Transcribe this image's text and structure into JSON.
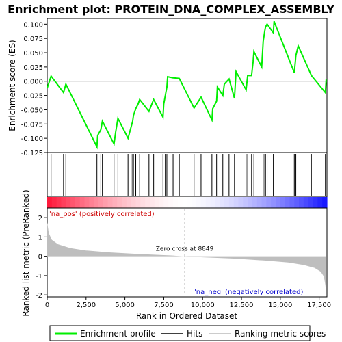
{
  "chart_data": {
    "type": "line",
    "title": "Enrichment plot: PROTEIN_DNA_COMPLEX_ASSEMBLY",
    "panels": {
      "enrichment": {
        "ylabel": "Enrichment score (ES)",
        "ylim": [
          -0.125,
          0.11
        ],
        "yticks": [
          0.1,
          0.075,
          0.05,
          0.025,
          0.0,
          -0.025,
          -0.05,
          -0.075,
          -0.1,
          -0.125
        ],
        "ytick_labels": [
          "0.100",
          "0.075",
          "0.050",
          "0.025",
          "0.000",
          "-0.025",
          "-0.050",
          "-0.075",
          "-0.100",
          "-0.125"
        ],
        "series": [
          {
            "name": "Enrichment profile",
            "color": "#00ee00",
            "x": [
              0,
              250,
              1050,
              1200,
              3200,
              3250,
              3450,
              3550,
              4300,
              4400,
              4550,
              5200,
              5400,
              5500,
              5550,
              5700,
              5850,
              5950,
              6550,
              6850,
              7450,
              7500,
              7600,
              7700,
              7750,
              8100,
              8500,
              9450,
              9900,
              10600,
              10650,
              10900,
              10950,
              11300,
              11400,
              11700,
              12050,
              12150,
              12800,
              12900,
              13150,
              13250,
              13300,
              13800,
              13900,
              14000,
              14050,
              14150,
              14550,
              14600,
              15900,
              16000,
              16150,
              17000,
              17900,
              17950
            ],
            "y": [
              -0.012,
              0.009,
              -0.02,
              -0.005,
              -0.115,
              -0.095,
              -0.085,
              -0.07,
              -0.11,
              -0.09,
              -0.065,
              -0.1,
              -0.08,
              -0.07,
              -0.06,
              -0.048,
              -0.04,
              -0.032,
              -0.053,
              -0.032,
              -0.063,
              -0.04,
              -0.025,
              -0.01,
              0.008,
              0.006,
              0.005,
              -0.047,
              -0.028,
              -0.068,
              -0.048,
              -0.035,
              -0.01,
              -0.025,
              -0.005,
              0.004,
              -0.03,
              0.017,
              -0.015,
              0.01,
              0.01,
              0.035,
              0.052,
              0.025,
              0.07,
              0.088,
              0.095,
              0.1,
              0.085,
              0.105,
              0.015,
              0.045,
              0.062,
              0.01,
              -0.02,
              0.003
            ]
          }
        ]
      },
      "hits": {
        "series_name": "Hits",
        "x": [
          250,
          1050,
          1200,
          3200,
          3450,
          3550,
          4300,
          4550,
          5200,
          5400,
          5500,
          5550,
          5700,
          5950,
          6550,
          6850,
          7450,
          7600,
          7700,
          8100,
          8500,
          9450,
          9900,
          10600,
          10900,
          11300,
          11700,
          12050,
          12800,
          12900,
          13150,
          13300,
          13900,
          14000,
          14050,
          14150,
          14550,
          15900,
          16000,
          17000,
          17900
        ]
      },
      "ranked_metric": {
        "series_name": "Ranking metric scores",
        "ylabel": "Ranked list metric (PreRanked)",
        "xlabel": "Rank in Ordered Dataset",
        "xlim": [
          0,
          18000
        ],
        "xticks": [
          0,
          2500,
          5000,
          7500,
          10000,
          12500,
          15000,
          17500
        ],
        "xtick_labels": [
          "0",
          "2,500",
          "5,000",
          "7,500",
          "10,000",
          "12,500",
          "15,000",
          "17,500"
        ],
        "ylim": [
          -2.1,
          2.5
        ],
        "yticks": [
          2,
          1,
          0,
          -1,
          -2
        ],
        "ytick_labels": [
          "2",
          "1",
          "0",
          "-1",
          "-2"
        ],
        "x": [
          0,
          100,
          300,
          700,
          1500,
          2500,
          4000,
          6000,
          8000,
          8849,
          10000,
          12000,
          14000,
          15500,
          16500,
          17200,
          17600,
          17800,
          17900,
          17950
        ],
        "y": [
          1.75,
          1.2,
          0.85,
          0.62,
          0.42,
          0.3,
          0.2,
          0.11,
          0.04,
          0.0,
          -0.05,
          -0.12,
          -0.22,
          -0.32,
          -0.45,
          -0.6,
          -0.8,
          -1.05,
          -1.5,
          -1.9
        ],
        "zero_cross_label": "Zero cross at 8849",
        "zero_cross_x": 8849,
        "pos_label": "'na_pos' (positively correlated)",
        "neg_label": "'na_neg' (negatively correlated)"
      }
    },
    "legend": {
      "placement": "bottom",
      "items": [
        {
          "label": "Enrichment profile",
          "color": "#00ee00"
        },
        {
          "label": "Hits",
          "color": "#000000"
        },
        {
          "label": "Ranking metric scores",
          "color": "#bbbbbb"
        }
      ]
    },
    "colors": {
      "profile": "#00ee00",
      "metric_fill": "#bebebe",
      "pos": "#cc0000",
      "neg": "#0000cc",
      "zero_line": "#999999"
    }
  }
}
